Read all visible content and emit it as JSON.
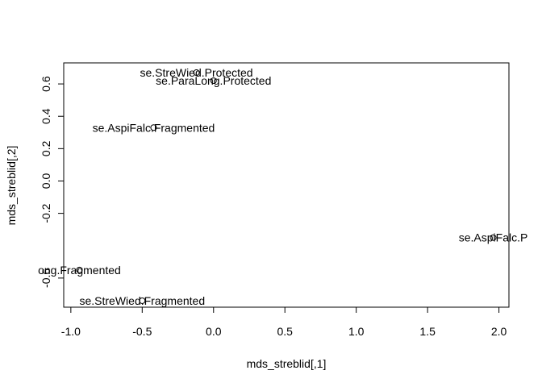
{
  "chart_data": {
    "type": "scatter",
    "xlabel": "mds_streblid[,1]",
    "ylabel": "mds_streblid[,2]",
    "xlim": [
      -1.05,
      2.07
    ],
    "ylim": [
      -0.78,
      0.73
    ],
    "xticks": [
      -1.0,
      -0.5,
      0.0,
      0.5,
      1.0,
      1.5,
      2.0
    ],
    "xtick_labels": [
      "-1.0",
      "-0.5",
      "0.0",
      "0.5",
      "1.0",
      "1.5",
      "2.0"
    ],
    "yticks": [
      -0.6,
      -0.2,
      0.0,
      0.2,
      0.4,
      0.6
    ],
    "ytick_labels": [
      "-0.6",
      "-0.2",
      "0.0",
      "0.2",
      "0.4",
      "0.6"
    ],
    "grid": false,
    "points": [
      {
        "x": -0.12,
        "y": 0.67,
        "label": "se.StreWied.Protected"
      },
      {
        "x": 0.0,
        "y": 0.62,
        "label": "se.ParaLong.Protected"
      },
      {
        "x": -0.42,
        "y": 0.33,
        "label": "se.AspiFalc.Fragmented"
      },
      {
        "x": 1.96,
        "y": -0.35,
        "label": "se.AspiFalc.P"
      },
      {
        "x": -0.94,
        "y": -0.55,
        "label": "ong.Fragmented"
      },
      {
        "x": -0.5,
        "y": -0.74,
        "label": "se.StreWied.Fragmented"
      }
    ]
  }
}
